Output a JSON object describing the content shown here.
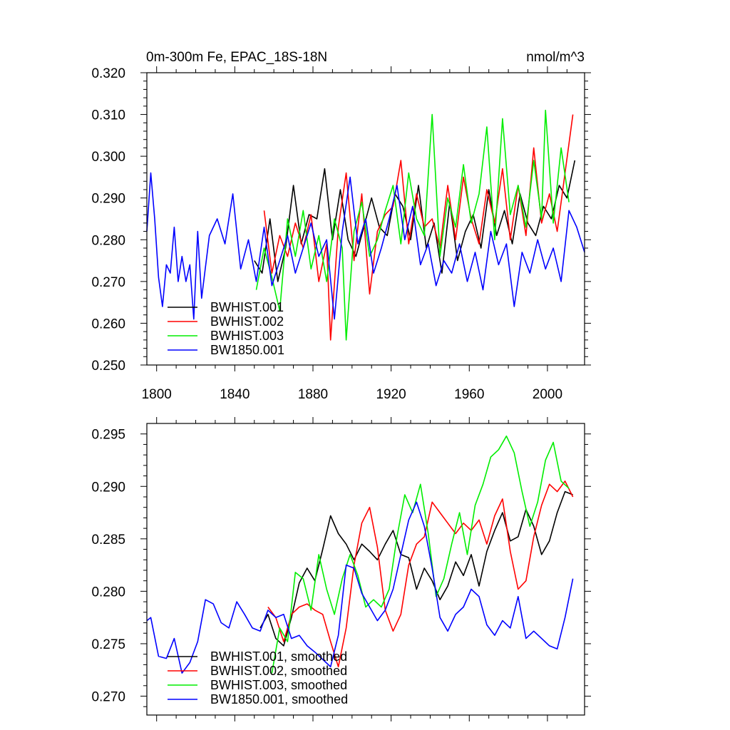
{
  "colors": {
    "BWHIST.001": "#000000",
    "BWHIST.002": "#ff0000",
    "BWHIST.003": "#00ee00",
    "BW1850.001": "#0000ff"
  },
  "chart_data": [
    {
      "type": "line",
      "title": "0m-300m Fe, EPAC_18S-18N",
      "units": "nmol/m^3",
      "xlim": [
        1795,
        2019
      ],
      "ylim": [
        0.25,
        0.32
      ],
      "x_ticks": [
        1800,
        1840,
        1880,
        1920,
        1960,
        2000
      ],
      "y_ticks": [
        "0.250",
        "0.260",
        "0.270",
        "0.280",
        "0.290",
        "0.300",
        "0.310",
        "0.320"
      ],
      "legend_position": "bottom-left",
      "series": [
        {
          "name": "BWHIST.001",
          "x": [
            1850,
            1854,
            1858,
            1862,
            1866,
            1870,
            1874,
            1878,
            1882,
            1886,
            1890,
            1894,
            1898,
            1902,
            1906,
            1910,
            1914,
            1918,
            1922,
            1926,
            1930,
            1934,
            1938,
            1942,
            1946,
            1950,
            1954,
            1958,
            1962,
            1966,
            1970,
            1974,
            1978,
            1982,
            1986,
            1990,
            1994,
            1998,
            2002,
            2006,
            2010,
            2014
          ],
          "values": [
            0.275,
            0.272,
            0.285,
            0.27,
            0.278,
            0.293,
            0.279,
            0.286,
            0.285,
            0.297,
            0.28,
            0.292,
            0.28,
            0.276,
            0.283,
            0.29,
            0.283,
            0.281,
            0.291,
            0.288,
            0.28,
            0.293,
            0.278,
            0.284,
            0.272,
            0.289,
            0.275,
            0.282,
            0.286,
            0.278,
            0.292,
            0.281,
            0.287,
            0.279,
            0.291,
            0.284,
            0.281,
            0.288,
            0.285,
            0.293,
            0.29,
            0.299
          ]
        },
        {
          "name": "BWHIST.002",
          "x": [
            1855,
            1859,
            1863,
            1867,
            1871,
            1875,
            1879,
            1883,
            1887,
            1889,
            1893,
            1897,
            1901,
            1905,
            1909,
            1913,
            1917,
            1921,
            1925,
            1929,
            1933,
            1937,
            1941,
            1945,
            1949,
            1953,
            1957,
            1961,
            1965,
            1969,
            1973,
            1977,
            1981,
            1985,
            1989,
            1993,
            1997,
            2001,
            2005,
            2009,
            2013
          ],
          "values": [
            0.287,
            0.272,
            0.281,
            0.276,
            0.284,
            0.278,
            0.286,
            0.27,
            0.279,
            0.256,
            0.283,
            0.296,
            0.275,
            0.291,
            0.267,
            0.282,
            0.286,
            0.288,
            0.299,
            0.279,
            0.291,
            0.283,
            0.285,
            0.278,
            0.293,
            0.28,
            0.295,
            0.285,
            0.279,
            0.292,
            0.284,
            0.297,
            0.28,
            0.293,
            0.281,
            0.302,
            0.284,
            0.291,
            0.282,
            0.296,
            0.31
          ]
        },
        {
          "name": "BWHIST.003",
          "x": [
            1851,
            1855,
            1859,
            1863,
            1867,
            1871,
            1875,
            1879,
            1883,
            1887,
            1891,
            1895,
            1897,
            1901,
            1905,
            1909,
            1913,
            1917,
            1921,
            1925,
            1929,
            1933,
            1937,
            1941,
            1945,
            1949,
            1953,
            1957,
            1961,
            1965,
            1969,
            1973,
            1977,
            1981,
            1985,
            1989,
            1993,
            1997,
            1999,
            2003,
            2007,
            2011
          ],
          "values": [
            0.268,
            0.278,
            0.271,
            0.263,
            0.285,
            0.276,
            0.287,
            0.273,
            0.281,
            0.27,
            0.285,
            0.278,
            0.256,
            0.282,
            0.289,
            0.276,
            0.28,
            0.287,
            0.293,
            0.279,
            0.296,
            0.285,
            0.281,
            0.31,
            0.276,
            0.29,
            0.283,
            0.298,
            0.284,
            0.291,
            0.307,
            0.28,
            0.309,
            0.286,
            0.293,
            0.283,
            0.299,
            0.285,
            0.311,
            0.284,
            0.302,
            0.289
          ]
        },
        {
          "name": "BW1850.001",
          "x": [
            1795,
            1797,
            1799,
            1801,
            1803,
            1805,
            1807,
            1809,
            1811,
            1813,
            1815,
            1817,
            1819,
            1821,
            1823,
            1827,
            1831,
            1835,
            1839,
            1843,
            1847,
            1851,
            1855,
            1859,
            1863,
            1867,
            1871,
            1875,
            1879,
            1883,
            1887,
            1891,
            1895,
            1899,
            1903,
            1907,
            1911,
            1915,
            1919,
            1923,
            1927,
            1931,
            1935,
            1939,
            1943,
            1947,
            1951,
            1955,
            1959,
            1963,
            1967,
            1971,
            1975,
            1979,
            1983,
            1987,
            1991,
            1995,
            1999,
            2003,
            2007,
            2011,
            2015,
            2019
          ],
          "values": [
            0.282,
            0.296,
            0.285,
            0.271,
            0.264,
            0.274,
            0.272,
            0.283,
            0.27,
            0.276,
            0.27,
            0.274,
            0.261,
            0.282,
            0.266,
            0.281,
            0.285,
            0.279,
            0.291,
            0.273,
            0.28,
            0.27,
            0.283,
            0.269,
            0.275,
            0.281,
            0.272,
            0.278,
            0.284,
            0.276,
            0.28,
            0.261,
            0.282,
            0.295,
            0.279,
            0.285,
            0.272,
            0.278,
            0.285,
            0.293,
            0.28,
            0.288,
            0.274,
            0.279,
            0.269,
            0.275,
            0.272,
            0.279,
            0.27,
            0.277,
            0.268,
            0.282,
            0.274,
            0.279,
            0.264,
            0.277,
            0.272,
            0.28,
            0.273,
            0.278,
            0.27,
            0.287,
            0.283,
            0.277
          ]
        }
      ]
    },
    {
      "type": "line",
      "xlim": [
        1795,
        2019
      ],
      "ylim": [
        0.2682,
        0.296
      ],
      "x_ticks": [
        1800,
        1840,
        1880,
        1920,
        1960,
        2000
      ],
      "y_ticks": [
        "0.270",
        "0.275",
        "0.280",
        "0.285",
        "0.290",
        "0.295"
      ],
      "legend_position": "bottom-left",
      "series": [
        {
          "name": "BWHIST.001, smoothed",
          "x": [
            1853,
            1857,
            1861,
            1865,
            1869,
            1873,
            1877,
            1881,
            1885,
            1889,
            1893,
            1897,
            1901,
            1905,
            1909,
            1913,
            1917,
            1921,
            1925,
            1929,
            1933,
            1937,
            1941,
            1945,
            1949,
            1953,
            1957,
            1961,
            1965,
            1969,
            1973,
            1977,
            1981,
            1985,
            1989,
            1993,
            1997,
            2001,
            2005,
            2009,
            2013
          ],
          "values": [
            0.2765,
            0.2778,
            0.2755,
            0.2748,
            0.2775,
            0.2808,
            0.2822,
            0.281,
            0.284,
            0.2872,
            0.2855,
            0.2845,
            0.283,
            0.2845,
            0.2838,
            0.283,
            0.2845,
            0.2858,
            0.2835,
            0.2832,
            0.2802,
            0.2822,
            0.281,
            0.2792,
            0.2805,
            0.2828,
            0.2815,
            0.2835,
            0.2805,
            0.2838,
            0.2858,
            0.2875,
            0.2848,
            0.2852,
            0.2878,
            0.2862,
            0.2835,
            0.2848,
            0.2875,
            0.2895,
            0.2892
          ]
        },
        {
          "name": "BWHIST.002, smoothed",
          "x": [
            1857,
            1861,
            1865,
            1869,
            1873,
            1877,
            1881,
            1885,
            1889,
            1893,
            1897,
            1901,
            1905,
            1909,
            1913,
            1917,
            1921,
            1925,
            1929,
            1933,
            1937,
            1941,
            1945,
            1949,
            1953,
            1957,
            1961,
            1965,
            1969,
            1973,
            1977,
            1981,
            1985,
            1989,
            1993,
            1997,
            2001,
            2005,
            2009,
            2013
          ],
          "values": [
            0.2785,
            0.2775,
            0.2752,
            0.2778,
            0.2785,
            0.2788,
            0.2782,
            0.2778,
            0.2752,
            0.2728,
            0.2765,
            0.2825,
            0.2865,
            0.288,
            0.2842,
            0.2782,
            0.2762,
            0.2778,
            0.2825,
            0.2845,
            0.2852,
            0.2885,
            0.2875,
            0.2865,
            0.2855,
            0.2865,
            0.2858,
            0.2868,
            0.2845,
            0.2872,
            0.2888,
            0.2838,
            0.2802,
            0.281,
            0.2852,
            0.2882,
            0.2902,
            0.2895,
            0.2905,
            0.289
          ]
        },
        {
          "name": "BWHIST.003, smoothed",
          "x": [
            1859,
            1863,
            1867,
            1871,
            1875,
            1879,
            1883,
            1887,
            1891,
            1895,
            1899,
            1903,
            1907,
            1911,
            1915,
            1919,
            1923,
            1927,
            1931,
            1935,
            1939,
            1943,
            1947,
            1951,
            1955,
            1959,
            1963,
            1967,
            1971,
            1975,
            1979,
            1983,
            1987,
            1991,
            1995,
            1999,
            2003,
            2007,
            2011
          ],
          "values": [
            0.2722,
            0.2765,
            0.2752,
            0.2818,
            0.2812,
            0.2782,
            0.2835,
            0.2802,
            0.2778,
            0.2812,
            0.2835,
            0.2815,
            0.2785,
            0.2792,
            0.2785,
            0.2802,
            0.2852,
            0.2892,
            0.2875,
            0.2902,
            0.2855,
            0.2795,
            0.2812,
            0.2845,
            0.2875,
            0.2835,
            0.2882,
            0.2902,
            0.2928,
            0.2935,
            0.2948,
            0.2932,
            0.2895,
            0.2862,
            0.2885,
            0.2925,
            0.2942,
            0.2905,
            0.2898
          ]
        },
        {
          "name": "BW1850.001, smoothed",
          "x": [
            1795,
            1797,
            1801,
            1805,
            1809,
            1813,
            1817,
            1821,
            1825,
            1829,
            1833,
            1837,
            1841,
            1845,
            1849,
            1853,
            1857,
            1861,
            1865,
            1869,
            1873,
            1877,
            1881,
            1885,
            1889,
            1893,
            1897,
            1901,
            1905,
            1909,
            1913,
            1917,
            1921,
            1925,
            1929,
            1933,
            1937,
            1941,
            1945,
            1949,
            1953,
            1957,
            1961,
            1965,
            1969,
            1973,
            1977,
            1981,
            1985,
            1989,
            1993,
            1997,
            2001,
            2005,
            2009,
            2013
          ],
          "values": [
            0.2772,
            0.2775,
            0.2738,
            0.2736,
            0.2755,
            0.2722,
            0.2732,
            0.2752,
            0.2792,
            0.2788,
            0.277,
            0.2765,
            0.279,
            0.2778,
            0.2765,
            0.2762,
            0.2782,
            0.2775,
            0.2778,
            0.2755,
            0.2758,
            0.2748,
            0.2742,
            0.2735,
            0.2728,
            0.2758,
            0.2825,
            0.2822,
            0.2798,
            0.2785,
            0.2772,
            0.2782,
            0.2802,
            0.2835,
            0.2868,
            0.2885,
            0.2862,
            0.2822,
            0.2775,
            0.2762,
            0.2778,
            0.2785,
            0.2802,
            0.2795,
            0.2768,
            0.2758,
            0.2772,
            0.2765,
            0.2795,
            0.2755,
            0.2762,
            0.2755,
            0.2748,
            0.2745,
            0.2775,
            0.2812
          ]
        }
      ]
    }
  ]
}
